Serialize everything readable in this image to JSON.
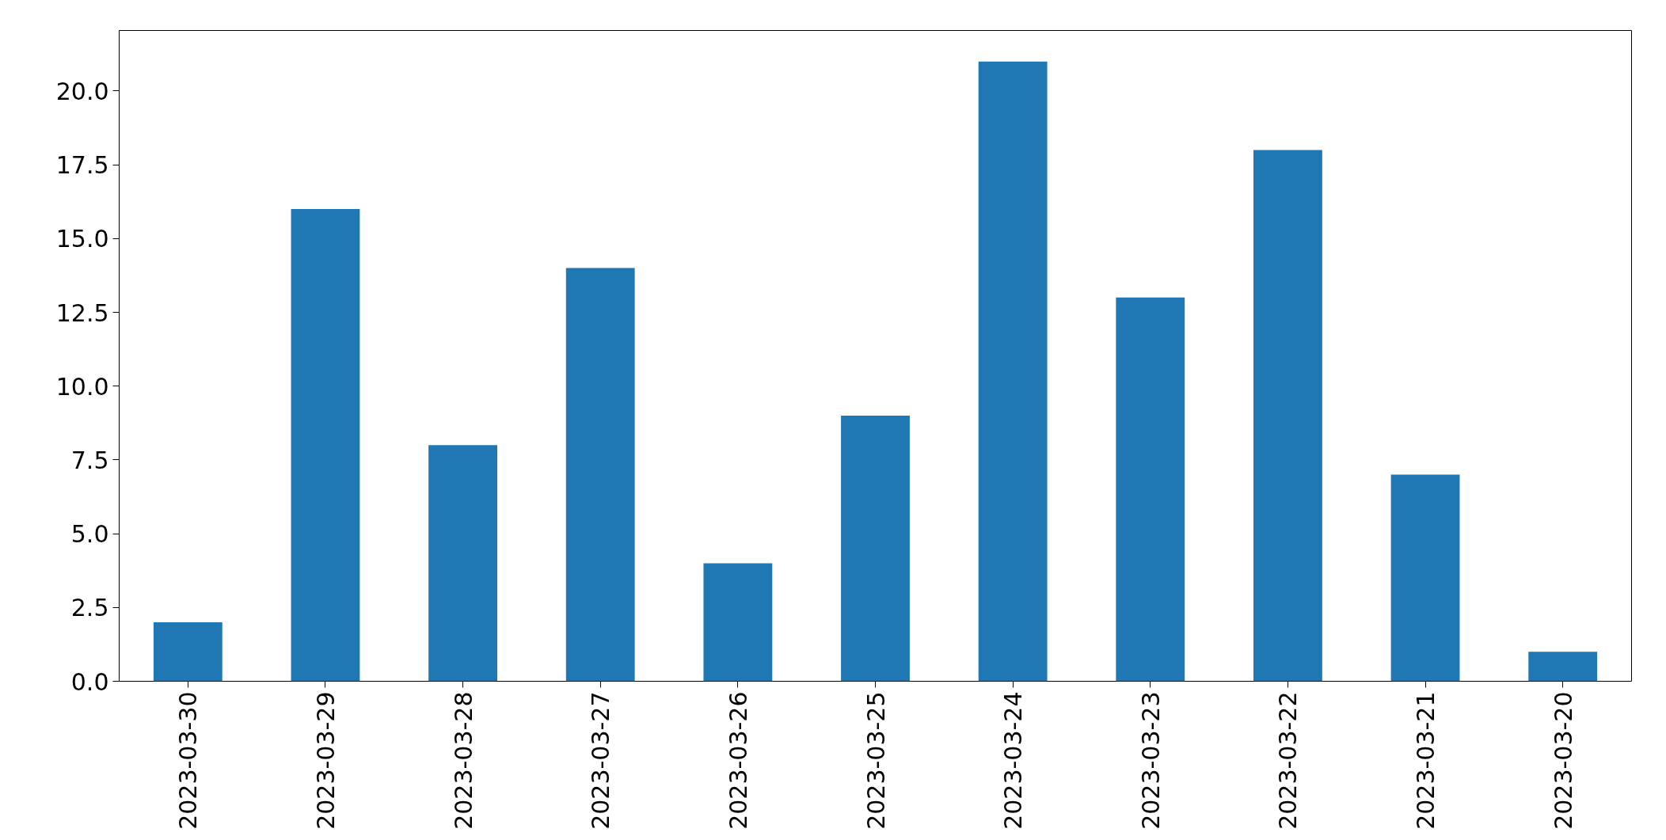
{
  "chart_data": {
    "type": "bar",
    "categories": [
      "2023-03-30",
      "2023-03-29",
      "2023-03-28",
      "2023-03-27",
      "2023-03-26",
      "2023-03-25",
      "2023-03-24",
      "2023-03-23",
      "2023-03-22",
      "2023-03-21",
      "2023-03-20"
    ],
    "values": [
      2,
      16,
      8,
      14,
      4,
      9,
      21,
      13,
      18,
      7,
      1
    ],
    "color": "#1f77b4",
    "ylim": [
      0,
      22.05
    ],
    "yticks": [
      {
        "value": 0,
        "label": "0.0"
      },
      {
        "value": 2.5,
        "label": "2.5"
      },
      {
        "value": 5,
        "label": "5.0"
      },
      {
        "value": 7.5,
        "label": "7.5"
      },
      {
        "value": 10,
        "label": "10.0"
      },
      {
        "value": 12.5,
        "label": "12.5"
      },
      {
        "value": 15,
        "label": "15.0"
      },
      {
        "value": 17.5,
        "label": "17.5"
      },
      {
        "value": 20,
        "label": "20.0"
      }
    ],
    "grid": false
  }
}
